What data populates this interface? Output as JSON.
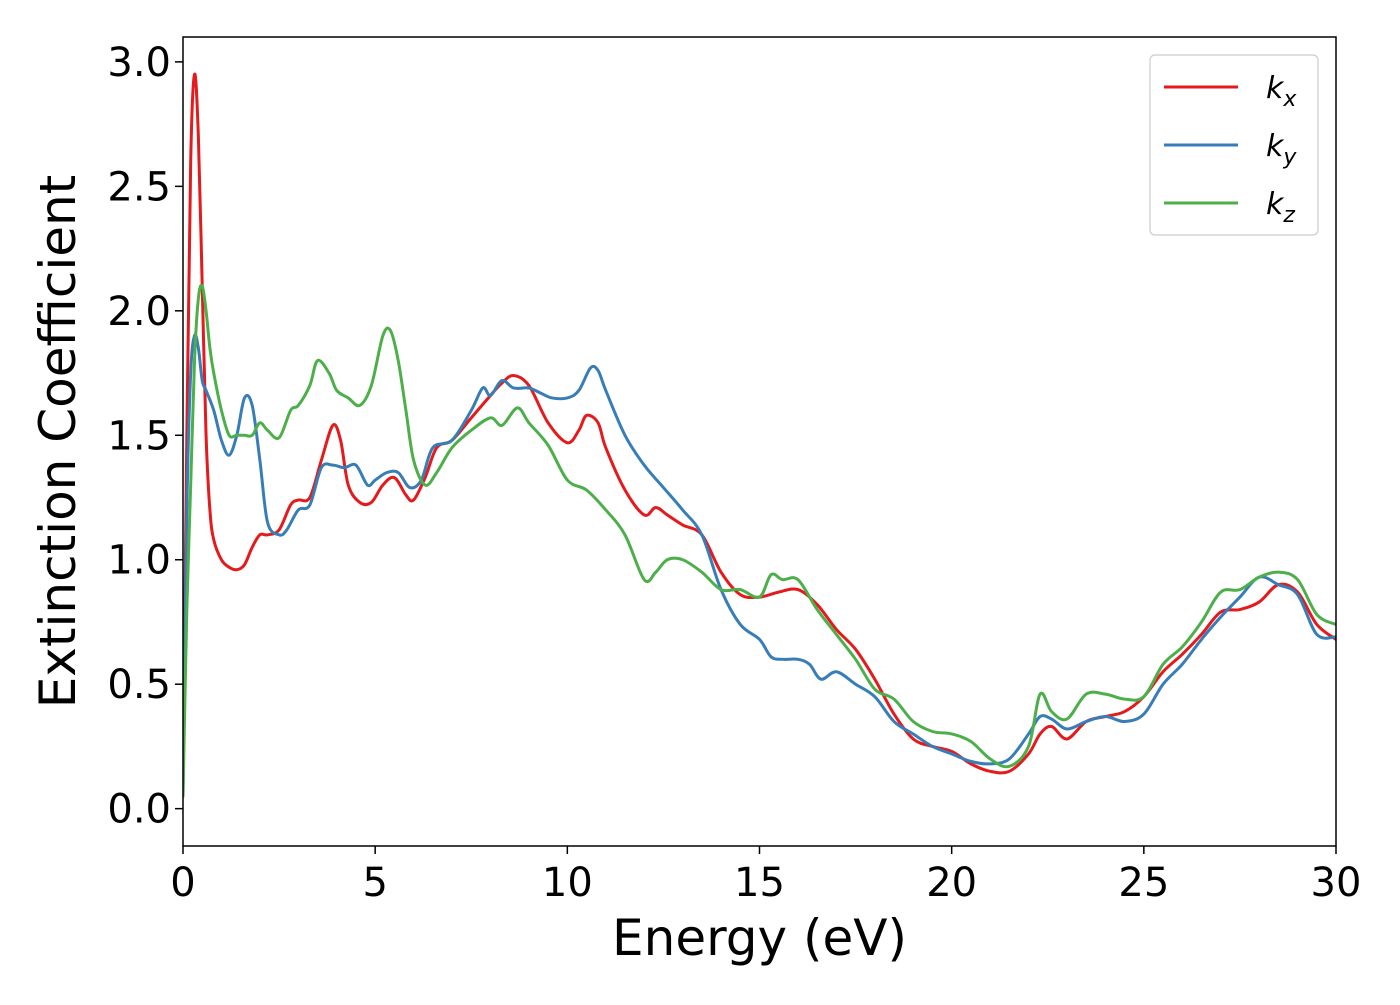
{
  "chart_data": {
    "type": "line",
    "title": "",
    "xlabel": "Energy (eV)",
    "ylabel": "Extinction Coefficient",
    "xlim": [
      0,
      30
    ],
    "ylim": [
      -0.15,
      3.1
    ],
    "xticks": [
      0,
      5,
      10,
      15,
      20,
      25,
      30
    ],
    "xtick_labels": [
      "0",
      "5",
      "10",
      "15",
      "20",
      "25",
      "30"
    ],
    "yticks": [
      0.0,
      0.5,
      1.0,
      1.5,
      2.0,
      2.5,
      3.0
    ],
    "ytick_labels": [
      "0.0",
      "0.5",
      "1.0",
      "1.5",
      "2.0",
      "2.5",
      "3.0"
    ],
    "grid": false,
    "legend_position": "top-right",
    "series": [
      {
        "name": "kx",
        "label_main": "k",
        "label_sub": "x",
        "color": "#e41a1c",
        "x": [
          0,
          0.1,
          0.2,
          0.3,
          0.4,
          0.5,
          0.6,
          0.7,
          0.8,
          1.0,
          1.2,
          1.4,
          1.6,
          1.8,
          2.0,
          2.2,
          2.5,
          2.8,
          3.0,
          3.3,
          3.6,
          3.9,
          4.1,
          4.3,
          4.6,
          4.9,
          5.2,
          5.5,
          5.8,
          6.0,
          6.3,
          6.6,
          7.0,
          7.5,
          8.0,
          8.3,
          8.6,
          9.0,
          9.5,
          10.0,
          10.3,
          10.5,
          10.8,
          11.0,
          11.5,
          12.0,
          12.3,
          12.6,
          13.0,
          13.5,
          14.0,
          14.5,
          15.0,
          15.5,
          16.0,
          16.5,
          17.0,
          17.5,
          18.0,
          18.5,
          19.0,
          19.5,
          20.0,
          20.5,
          21.0,
          21.5,
          22.0,
          22.3,
          22.6,
          23.0,
          23.5,
          24.0,
          24.5,
          25.0,
          25.5,
          26.0,
          26.5,
          27.0,
          27.5,
          28.0,
          28.5,
          29.0,
          29.5,
          30.0
        ],
        "y": [
          0.1,
          1.5,
          2.6,
          2.95,
          2.7,
          2.1,
          1.5,
          1.2,
          1.08,
          1.0,
          0.97,
          0.96,
          0.98,
          1.05,
          1.1,
          1.1,
          1.12,
          1.22,
          1.24,
          1.25,
          1.4,
          1.54,
          1.48,
          1.3,
          1.23,
          1.23,
          1.3,
          1.33,
          1.26,
          1.24,
          1.33,
          1.45,
          1.48,
          1.57,
          1.66,
          1.71,
          1.74,
          1.7,
          1.55,
          1.47,
          1.52,
          1.58,
          1.55,
          1.45,
          1.28,
          1.18,
          1.21,
          1.18,
          1.14,
          1.1,
          0.95,
          0.86,
          0.85,
          0.87,
          0.88,
          0.82,
          0.72,
          0.64,
          0.52,
          0.38,
          0.28,
          0.25,
          0.23,
          0.18,
          0.15,
          0.15,
          0.22,
          0.3,
          0.33,
          0.28,
          0.35,
          0.37,
          0.39,
          0.45,
          0.55,
          0.62,
          0.7,
          0.79,
          0.8,
          0.83,
          0.9,
          0.87,
          0.74,
          0.68
        ]
      },
      {
        "name": "ky",
        "label_main": "k",
        "label_sub": "y",
        "color": "#377eb8",
        "x": [
          0,
          0.1,
          0.2,
          0.3,
          0.4,
          0.5,
          0.6,
          0.8,
          1.0,
          1.2,
          1.4,
          1.6,
          1.8,
          2.0,
          2.2,
          2.5,
          2.7,
          3.0,
          3.3,
          3.6,
          3.9,
          4.2,
          4.5,
          4.8,
          5.0,
          5.3,
          5.6,
          5.9,
          6.2,
          6.5,
          7.0,
          7.5,
          7.8,
          8.0,
          8.3,
          8.6,
          9.0,
          9.3,
          9.6,
          10.0,
          10.3,
          10.6,
          10.8,
          11.0,
          11.5,
          12.0,
          12.5,
          13.0,
          13.5,
          14.0,
          14.5,
          15.0,
          15.3,
          15.6,
          16.0,
          16.3,
          16.6,
          17.0,
          17.5,
          18.0,
          18.5,
          19.0,
          19.5,
          20.0,
          20.5,
          21.0,
          21.5,
          22.0,
          22.3,
          22.6,
          23.0,
          23.5,
          24.0,
          24.5,
          25.0,
          25.5,
          26.0,
          26.5,
          27.0,
          27.5,
          28.0,
          28.5,
          29.0,
          29.5,
          30.0
        ],
        "y": [
          0.05,
          1.2,
          1.75,
          1.9,
          1.85,
          1.72,
          1.68,
          1.6,
          1.48,
          1.42,
          1.5,
          1.65,
          1.62,
          1.4,
          1.15,
          1.1,
          1.12,
          1.2,
          1.22,
          1.37,
          1.38,
          1.37,
          1.38,
          1.3,
          1.32,
          1.35,
          1.35,
          1.29,
          1.32,
          1.45,
          1.48,
          1.6,
          1.69,
          1.66,
          1.72,
          1.69,
          1.69,
          1.67,
          1.65,
          1.65,
          1.68,
          1.77,
          1.76,
          1.68,
          1.5,
          1.38,
          1.29,
          1.2,
          1.1,
          0.88,
          0.74,
          0.68,
          0.61,
          0.6,
          0.6,
          0.58,
          0.52,
          0.55,
          0.5,
          0.45,
          0.35,
          0.3,
          0.25,
          0.22,
          0.19,
          0.18,
          0.2,
          0.3,
          0.37,
          0.36,
          0.32,
          0.35,
          0.37,
          0.35,
          0.38,
          0.5,
          0.58,
          0.68,
          0.77,
          0.85,
          0.93,
          0.9,
          0.86,
          0.7,
          0.69
        ]
      },
      {
        "name": "kz",
        "label_main": "k",
        "label_sub": "z",
        "color": "#4daf4a",
        "x": [
          0,
          0.1,
          0.2,
          0.3,
          0.4,
          0.5,
          0.6,
          0.7,
          0.8,
          1.0,
          1.2,
          1.4,
          1.6,
          1.8,
          2.0,
          2.2,
          2.5,
          2.8,
          3.0,
          3.3,
          3.5,
          3.8,
          4.0,
          4.3,
          4.6,
          4.9,
          5.2,
          5.4,
          5.6,
          5.8,
          6.0,
          6.3,
          6.6,
          7.0,
          7.5,
          8.0,
          8.3,
          8.7,
          9.0,
          9.5,
          10.0,
          10.5,
          11.0,
          11.5,
          12.0,
          12.3,
          12.6,
          13.0,
          13.5,
          14.0,
          14.5,
          15.0,
          15.3,
          15.6,
          16.0,
          16.5,
          17.0,
          17.5,
          18.0,
          18.5,
          19.0,
          19.5,
          20.0,
          20.5,
          21.0,
          21.5,
          22.0,
          22.3,
          22.6,
          23.0,
          23.5,
          24.0,
          24.5,
          25.0,
          25.5,
          26.0,
          26.5,
          27.0,
          27.5,
          28.0,
          28.5,
          29.0,
          29.5,
          30.0
        ],
        "y": [
          0.05,
          0.8,
          1.3,
          1.8,
          2.05,
          2.1,
          2.0,
          1.85,
          1.75,
          1.6,
          1.5,
          1.5,
          1.5,
          1.5,
          1.55,
          1.52,
          1.49,
          1.6,
          1.62,
          1.7,
          1.8,
          1.75,
          1.68,
          1.65,
          1.62,
          1.7,
          1.9,
          1.92,
          1.8,
          1.6,
          1.4,
          1.3,
          1.35,
          1.45,
          1.52,
          1.57,
          1.54,
          1.61,
          1.55,
          1.46,
          1.32,
          1.28,
          1.2,
          1.1,
          0.92,
          0.95,
          1.0,
          1.0,
          0.95,
          0.88,
          0.88,
          0.85,
          0.94,
          0.92,
          0.92,
          0.8,
          0.7,
          0.6,
          0.48,
          0.44,
          0.35,
          0.31,
          0.3,
          0.27,
          0.2,
          0.17,
          0.25,
          0.46,
          0.39,
          0.36,
          0.46,
          0.46,
          0.44,
          0.45,
          0.58,
          0.65,
          0.75,
          0.87,
          0.88,
          0.93,
          0.95,
          0.92,
          0.78,
          0.74
        ]
      }
    ]
  }
}
